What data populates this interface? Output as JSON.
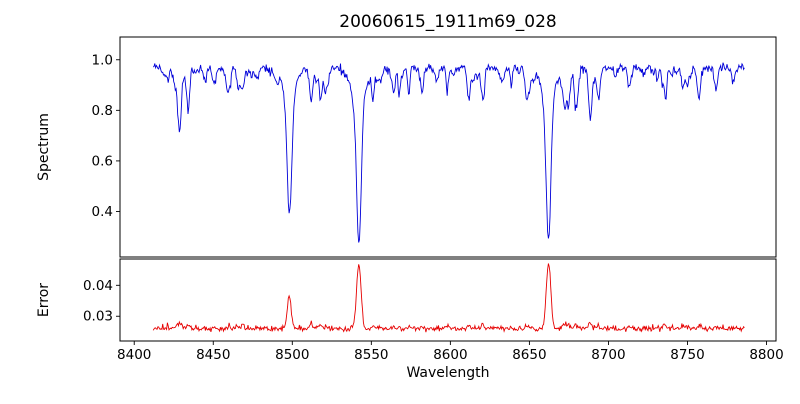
{
  "chart_data": {
    "type": "line",
    "title": "20060615_1911m69_028",
    "xlabel": "Wavelength",
    "xlim": [
      8391,
      8806
    ],
    "x_data_range": [
      8412,
      8786
    ],
    "x_step": 0.5,
    "noise_seed": 20060615,
    "xticks": [
      {
        "v": 8400,
        "label": "8400"
      },
      {
        "v": 8450,
        "label": "8450"
      },
      {
        "v": 8500,
        "label": "8500"
      },
      {
        "v": 8550,
        "label": "8550"
      },
      {
        "v": 8600,
        "label": "8600"
      },
      {
        "v": 8650,
        "label": "8650"
      },
      {
        "v": 8700,
        "label": "8700"
      },
      {
        "v": 8750,
        "label": "8750"
      },
      {
        "v": 8800,
        "label": "8800"
      }
    ],
    "panels": [
      {
        "name": "spectrum",
        "ylabel": "Spectrum",
        "color": "#0000d8",
        "ylim": [
          0.22,
          1.09
        ],
        "yticks": [
          {
            "v": 0.4,
            "label": "0.4"
          },
          {
            "v": 0.6,
            "label": "0.6"
          },
          {
            "v": 0.8,
            "label": "0.8"
          },
          {
            "v": 1.0,
            "label": "1.0"
          }
        ],
        "continuum": 0.975,
        "noise": {
          "sym": 0.006,
          "down": 0.01
        },
        "strong_lines": [
          {
            "center": 8498.0,
            "depth": 0.42,
            "width": 1.5
          },
          {
            "center": 8498.0,
            "depth": 0.09,
            "width": 4.5
          },
          {
            "center": 8542.1,
            "depth": 0.6,
            "width": 1.5
          },
          {
            "center": 8542.1,
            "depth": 0.1,
            "width": 5.0
          },
          {
            "center": 8662.1,
            "depth": 0.58,
            "width": 1.5
          },
          {
            "center": 8662.1,
            "depth": 0.1,
            "width": 4.8
          }
        ],
        "medium_lines": [
          {
            "center": 8429.0,
            "depth": 0.2,
            "width": 1.0
          },
          {
            "center": 8434.0,
            "depth": 0.15,
            "width": 0.9
          },
          {
            "center": 8468.5,
            "depth": 0.1,
            "width": 0.9
          },
          {
            "center": 8512.0,
            "depth": 0.14,
            "width": 1.0
          },
          {
            "center": 8518.0,
            "depth": 0.11,
            "width": 0.9
          },
          {
            "center": 8582.0,
            "depth": 0.1,
            "width": 0.9
          },
          {
            "center": 8598.0,
            "depth": 0.07,
            "width": 0.8
          },
          {
            "center": 8611.5,
            "depth": 0.09,
            "width": 0.9
          },
          {
            "center": 8621.0,
            "depth": 0.07,
            "width": 0.8
          },
          {
            "center": 8648.0,
            "depth": 0.07,
            "width": 0.8
          },
          {
            "center": 8674.5,
            "depth": 0.13,
            "width": 1.0
          },
          {
            "center": 8679.0,
            "depth": 0.11,
            "width": 0.9
          },
          {
            "center": 8688.5,
            "depth": 0.2,
            "width": 1.1
          },
          {
            "center": 8694.0,
            "depth": 0.11,
            "width": 0.9
          },
          {
            "center": 8713.0,
            "depth": 0.08,
            "width": 0.9
          },
          {
            "center": 8736.0,
            "depth": 0.09,
            "width": 0.9
          },
          {
            "center": 8747.0,
            "depth": 0.08,
            "width": 0.8
          },
          {
            "center": 8757.5,
            "depth": 0.1,
            "width": 0.9
          },
          {
            "center": 8768.0,
            "depth": 0.09,
            "width": 0.9
          }
        ],
        "weak_lines": {
          "count": 80,
          "min_depth": 0.02,
          "depth_scale": 0.028,
          "max_depth": 0.14,
          "min_width": 0.5,
          "width_spread": 0.7
        }
      },
      {
        "name": "error",
        "ylabel": "Error",
        "color": "#e60000",
        "ylim": [
          0.022,
          0.0485
        ],
        "yticks": [
          {
            "v": 0.03,
            "label": "0.03"
          },
          {
            "v": 0.04,
            "label": "0.04"
          }
        ],
        "baseline": 0.0256,
        "noise": {
          "sym": 0.00035,
          "up": 0.00045
        },
        "peaks": [
          {
            "center": 8498.0,
            "height": 0.01,
            "width": 1.3
          },
          {
            "center": 8542.1,
            "height": 0.021,
            "width": 1.4
          },
          {
            "center": 8662.1,
            "height": 0.0215,
            "width": 1.4
          }
        ],
        "line_bump_factor": 0.01,
        "weak_bump_factor": 0.007,
        "clamp_max": 0.0482
      }
    ]
  }
}
